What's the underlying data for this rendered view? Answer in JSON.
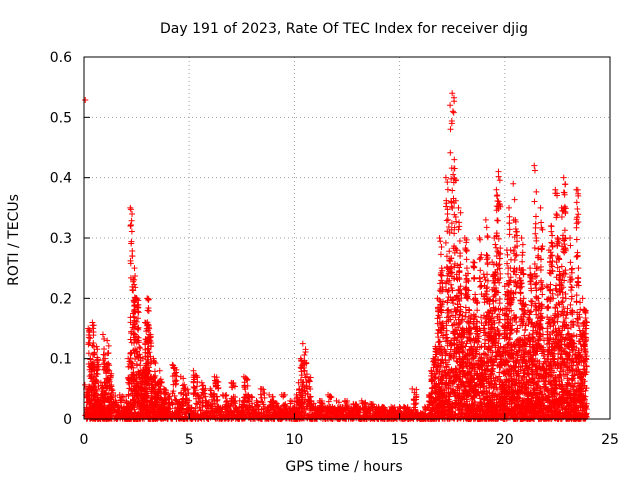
{
  "chart_data": {
    "type": "scatter",
    "title": "Day 191 of 2023, Rate Of TEC Index for receiver djig",
    "xlabel": "GPS time / hours",
    "ylabel": "ROTI / TECUs",
    "xlim": [
      0,
      25
    ],
    "ylim": [
      0,
      0.6
    ],
    "xticks": [
      "0",
      "5",
      "10",
      "15",
      "20",
      "25"
    ],
    "yticks": [
      "0",
      "0.1",
      "0.2",
      "0.3",
      "0.4",
      "0.5",
      "0.6"
    ],
    "grid": true,
    "marker": "+",
    "color": "#ff0000",
    "series": [
      {
        "x": [
          0.0,
          0.1,
          0.2,
          0.3,
          0.4,
          0.5,
          0.6,
          0.7,
          0.8,
          0.9,
          1.0,
          1.1,
          1.2,
          1.3,
          1.5,
          1.7,
          1.9,
          2.0,
          2.1,
          2.2,
          2.3,
          2.4,
          2.5,
          2.6,
          2.7,
          2.8,
          2.9,
          3.0,
          3.1,
          3.2,
          3.3,
          3.4,
          3.5,
          3.6,
          3.7,
          3.8,
          3.9,
          4.0,
          4.2,
          4.4,
          4.6,
          4.8,
          5.0,
          5.2,
          5.4,
          5.6,
          5.8,
          6.0,
          6.2,
          6.4,
          6.6,
          6.8,
          7.0,
          7.2,
          7.4,
          7.6,
          7.8,
          8.0,
          8.2,
          8.4,
          8.6,
          8.8,
          9.0,
          9.2,
          9.4,
          9.6,
          9.8,
          10.0,
          10.1,
          10.2,
          10.3,
          10.4,
          10.6,
          10.8,
          11.0,
          11.2,
          11.4,
          11.6,
          11.8,
          12.0,
          12.2,
          12.4,
          12.6,
          12.8,
          13.0,
          13.2,
          13.4,
          13.6,
          13.8,
          14.0,
          14.2,
          14.4,
          14.6,
          14.8,
          15.0,
          15.2,
          15.4,
          15.6,
          15.8,
          16.0,
          16.2,
          16.4,
          16.5,
          16.6,
          16.7,
          16.8,
          16.9,
          17.0,
          17.1,
          17.2,
          17.3,
          17.4,
          17.5,
          17.6,
          17.7,
          17.8,
          17.9,
          18.0,
          18.1,
          18.2,
          18.3,
          18.4,
          18.5,
          18.6,
          18.7,
          18.8,
          18.9,
          19.0,
          19.1,
          19.2,
          19.3,
          19.4,
          19.5,
          19.6,
          19.7,
          19.8,
          19.9,
          20.0,
          20.1,
          20.2,
          20.3,
          20.4,
          20.5,
          20.6,
          20.7,
          20.8,
          20.9,
          21.0,
          21.1,
          21.2,
          21.3,
          21.4,
          21.5,
          21.6,
          21.7,
          21.8,
          21.9,
          22.0,
          22.1,
          22.2,
          22.3,
          22.4,
          22.5,
          22.6,
          22.7,
          22.8,
          22.9,
          23.0,
          23.1,
          23.2,
          23.3,
          23.4,
          23.5,
          23.6,
          23.7,
          23.8,
          23.9,
          24.0,
          0.05,
          0.15,
          0.1,
          0.16,
          0.08,
          0.12,
          0.03,
          0.06,
          0.14,
          0.1,
          0.13,
          0.08,
          0.05,
          0.03,
          0.04,
          0.02,
          0.03,
          0.1,
          0.35,
          0.27,
          0.25,
          0.2,
          0.13,
          0.08,
          0.1,
          0.16,
          0.2,
          0.14,
          0.07,
          0.1,
          0.04,
          0.06,
          0.08,
          0.03,
          0.05,
          0.02,
          0.04,
          0.09,
          0.03,
          0.07,
          0.05,
          0.02,
          0.08,
          0.04,
          0.06,
          0.03,
          0.05,
          0.07,
          0.02,
          0.04,
          0.03,
          0.06,
          0.02,
          0.03,
          0.07,
          0.04,
          0.02,
          0.03,
          0.05,
          0.02,
          0.04,
          0.03,
          0.02,
          0.04,
          0.02,
          0.03,
          0.02,
          0.04,
          0.06,
          0.1,
          0.125,
          0.07,
          0.03,
          0.02,
          0.03,
          0.02,
          0.04,
          0.02,
          0.03,
          0.02,
          0.03,
          0.02,
          0.025,
          0.02,
          0.03,
          0.02,
          0.025,
          0.02,
          0.02,
          0.02,
          0.015,
          0.02,
          0.015,
          0.02,
          0.02,
          0.015,
          0.05,
          0.01,
          0.01,
          0.02,
          0.04,
          0.08,
          0.1,
          0.12,
          0.2,
          0.3,
          0.25,
          0.15,
          0.4,
          0.33,
          0.52,
          0.54,
          0.43,
          0.28,
          0.35,
          0.22,
          0.15,
          0.3,
          0.25,
          0.18,
          0.12,
          0.26,
          0.2,
          0.15,
          0.3,
          0.1,
          0.24,
          0.33,
          0.2,
          0.18,
          0.26,
          0.3,
          0.38,
          0.41,
          0.12,
          0.18,
          0.22,
          0.28,
          0.35,
          0.2,
          0.39,
          0.33,
          0.15,
          0.25,
          0.3,
          0.2,
          0.12,
          0.18,
          0.25,
          0.16,
          0.42,
          0.3,
          0.2,
          0.35,
          0.15,
          0.1,
          0.22,
          0.28,
          0.32,
          0.2,
          0.38,
          0.3,
          0.24,
          0.35,
          0.4,
          0.2,
          0.15,
          0.3,
          0.18,
          0.12,
          0.38,
          0.25,
          0.14,
          0.2,
          0.18,
          0.16,
          0.12
        ],
        "y_note": ""
      }
    ]
  }
}
